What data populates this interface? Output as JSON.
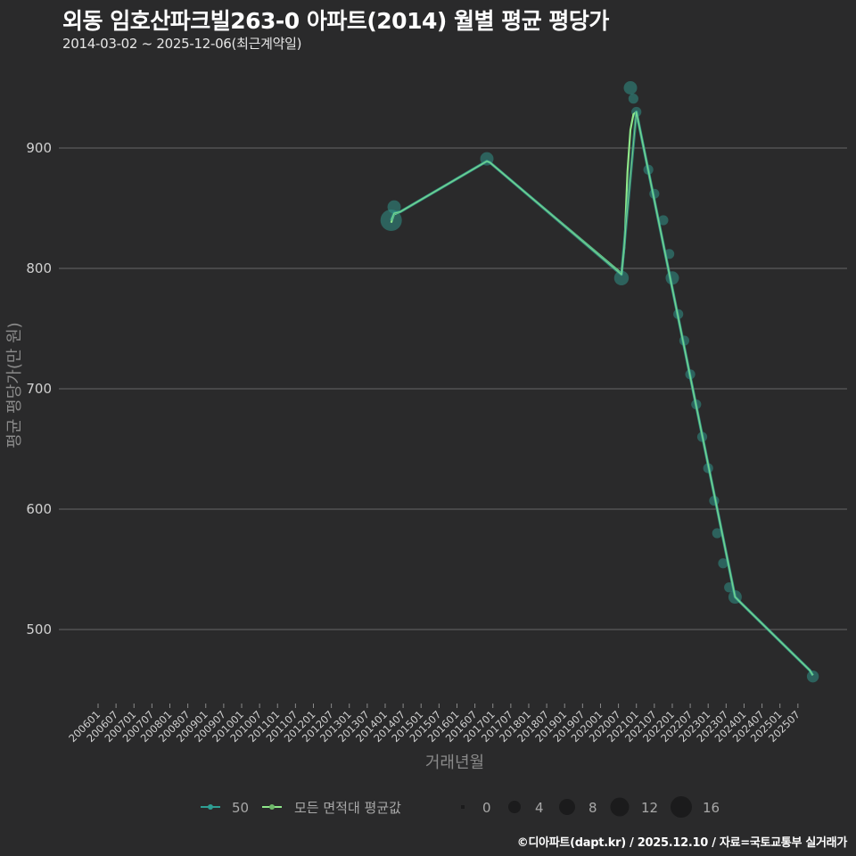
{
  "header": {
    "title": "외동 임호산파크빌263-0 아파트(2014) 월별 평균 평당가",
    "subtitle": "2014-03-02 ~ 2025-12-06(최근계약일)"
  },
  "footer": {
    "credit": "©디아파트(dapt.kr) / 2025.12.10 / 자료=국토교통부 실거래가"
  },
  "colors": {
    "background": "#2a2a2b",
    "grid": "#5b5b5b",
    "series_50": "#2f9e93",
    "series_avg": "#8fe88a",
    "dot_fill": "#2f8f86"
  },
  "chart_data": {
    "type": "line",
    "title": "외동 임호산파크빌263-0 아파트(2014) 월별 평균 평당가",
    "subtitle": "2014-03-02 ~ 2025-12-06(최근계약일)",
    "xlabel": "거래년월",
    "ylabel": "평균 평당가(만 원)",
    "ylim": [
      440,
      970
    ],
    "yticks": [
      500,
      600,
      700,
      800,
      900
    ],
    "grid": true,
    "legend_position": "bottom",
    "x_tick_labels": [
      "200601",
      "200607",
      "200701",
      "200707",
      "200801",
      "200807",
      "200901",
      "200907",
      "201001",
      "201007",
      "201101",
      "201107",
      "201201",
      "201207",
      "201301",
      "201307",
      "201401",
      "201407",
      "201501",
      "201507",
      "201601",
      "201607",
      "201701",
      "201707",
      "201801",
      "201807",
      "201901",
      "201907",
      "202001",
      "202007",
      "202101",
      "202107",
      "202201",
      "202207",
      "202301",
      "202307",
      "202401",
      "202407",
      "202501",
      "202507"
    ],
    "series": [
      {
        "name": "50",
        "kind": "line+points",
        "points": [
          {
            "x": "201403",
            "y": 840,
            "count": 12
          },
          {
            "x": "201404",
            "y": 851,
            "count": 3
          },
          {
            "x": "201611",
            "y": 891,
            "count": 3
          },
          {
            "x": "202008",
            "y": 792,
            "count": 4
          },
          {
            "x": "202011",
            "y": 950,
            "count": 3
          },
          {
            "x": "202012",
            "y": 941,
            "count": 1
          },
          {
            "x": "202101",
            "y": 930,
            "count": 1
          },
          {
            "x": "202105",
            "y": 882,
            "count": 1
          },
          {
            "x": "202107",
            "y": 862,
            "count": 1
          },
          {
            "x": "202110",
            "y": 840,
            "count": 1
          },
          {
            "x": "202112",
            "y": 812,
            "count": 1
          },
          {
            "x": "202201",
            "y": 792,
            "count": 3
          },
          {
            "x": "202203",
            "y": 762,
            "count": 1
          },
          {
            "x": "202205",
            "y": 740,
            "count": 1
          },
          {
            "x": "202207",
            "y": 712,
            "count": 1
          },
          {
            "x": "202209",
            "y": 687,
            "count": 1
          },
          {
            "x": "202211",
            "y": 660,
            "count": 1
          },
          {
            "x": "202301",
            "y": 634,
            "count": 1
          },
          {
            "x": "202303",
            "y": 607,
            "count": 1
          },
          {
            "x": "202304",
            "y": 580,
            "count": 1
          },
          {
            "x": "202306",
            "y": 555,
            "count": 1
          },
          {
            "x": "202308",
            "y": 535,
            "count": 1
          },
          {
            "x": "202310",
            "y": 527,
            "count": 3
          },
          {
            "x": "202512",
            "y": 461,
            "count": 2
          }
        ],
        "line": [
          {
            "x": "201403",
            "y": 840
          },
          {
            "x": "201404",
            "y": 846
          },
          {
            "x": "201406",
            "y": 847
          },
          {
            "x": "201611",
            "y": 889
          },
          {
            "x": "201612",
            "y": 888
          },
          {
            "x": "202007",
            "y": 797
          },
          {
            "x": "202008",
            "y": 795
          },
          {
            "x": "202101",
            "y": 930
          },
          {
            "x": "202310",
            "y": 527
          },
          {
            "x": "202312",
            "y": 522
          },
          {
            "x": "202511",
            "y": 466
          },
          {
            "x": "202512",
            "y": 462
          }
        ]
      },
      {
        "name": "모든 면적대 평균값",
        "kind": "line",
        "line": [
          {
            "x": "201403",
            "y": 838
          },
          {
            "x": "201404",
            "y": 845
          },
          {
            "x": "201406",
            "y": 847
          },
          {
            "x": "201611",
            "y": 889
          },
          {
            "x": "201612",
            "y": 888
          },
          {
            "x": "202007",
            "y": 798
          },
          {
            "x": "202008",
            "y": 795
          },
          {
            "x": "202009",
            "y": 818
          },
          {
            "x": "202010",
            "y": 880
          },
          {
            "x": "202011",
            "y": 915
          },
          {
            "x": "202012",
            "y": 928
          },
          {
            "x": "202101",
            "y": 930
          },
          {
            "x": "202310",
            "y": 527
          },
          {
            "x": "202312",
            "y": 522
          },
          {
            "x": "202511",
            "y": 466
          },
          {
            "x": "202512",
            "y": 462
          }
        ]
      }
    ],
    "size_legend": {
      "title": "",
      "values": [
        0,
        4,
        8,
        12,
        16
      ]
    }
  },
  "legend": {
    "series": [
      {
        "label": "50"
      },
      {
        "label": "모든 면적대 평균값"
      }
    ],
    "sizes": [
      {
        "label": "0"
      },
      {
        "label": "4"
      },
      {
        "label": "8"
      },
      {
        "label": "12"
      },
      {
        "label": "16"
      }
    ]
  }
}
